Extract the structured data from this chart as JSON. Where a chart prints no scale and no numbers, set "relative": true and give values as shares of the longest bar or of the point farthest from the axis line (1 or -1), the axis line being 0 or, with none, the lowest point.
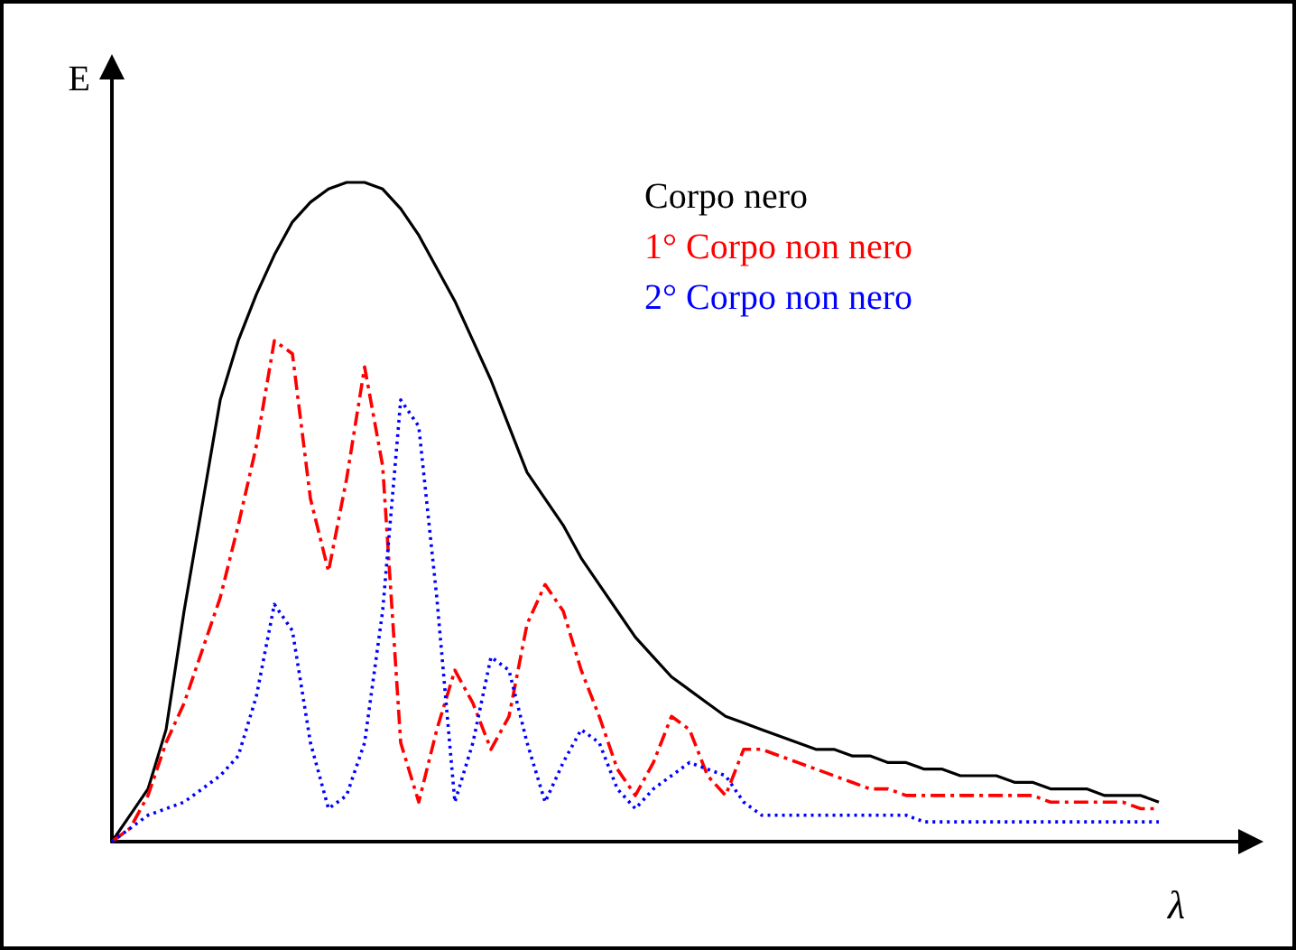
{
  "chart_data": {
    "type": "line",
    "relative": true,
    "xlabel": "λ",
    "ylabel": "E",
    "legend": "top right",
    "grid": false,
    "marker": "none",
    "categories": [
      null,
      null,
      null,
      null,
      null,
      null,
      null,
      null,
      null,
      null,
      null,
      null,
      null,
      null,
      null,
      null,
      null,
      null,
      null,
      null,
      null,
      null,
      null,
      null,
      null,
      null,
      null,
      null,
      null,
      null,
      null,
      null,
      null,
      null,
      null,
      null,
      null,
      null,
      null,
      null,
      null,
      null,
      null,
      null,
      null,
      null,
      null,
      null,
      null,
      null,
      null,
      null,
      null,
      null,
      null,
      null,
      null,
      null,
      null,
      null,
      null,
      null,
      null,
      null
    ],
    "series": [
      {
        "name": "Corpo nero",
        "color": "#000000",
        "line_style": "solid",
        "values": [
          0,
          0.04,
          0.08,
          0.17,
          0.35,
          0.51,
          0.67,
          0.76,
          0.83,
          0.89,
          0.94,
          0.97,
          0.99,
          1,
          1,
          0.99,
          0.96,
          0.92,
          0.87,
          0.82,
          0.76,
          0.7,
          0.63,
          0.56,
          0.52,
          0.48,
          0.43,
          0.39,
          0.35,
          0.31,
          0.28,
          0.25,
          0.23,
          0.21,
          0.19,
          0.18,
          0.17,
          0.16,
          0.15,
          0.14,
          0.14,
          0.13,
          0.13,
          0.12,
          0.12,
          0.11,
          0.11,
          0.1,
          0.1,
          0.1,
          0.09,
          0.09,
          0.08,
          0.08,
          0.08,
          0.07,
          0.07,
          0.07,
          0.06,
          null,
          null,
          null,
          null,
          null
        ]
      },
      {
        "name": "1° Corpo non nero",
        "color": "#ff0000",
        "line_style": "dashed",
        "values": [
          0,
          0.02,
          0.07,
          0.15,
          0.21,
          0.29,
          0.37,
          0.48,
          0.6,
          0.76,
          0.74,
          0.52,
          0.41,
          0.55,
          0.72,
          0.57,
          0.15,
          0.06,
          0.17,
          0.26,
          0.21,
          0.14,
          0.19,
          0.33,
          0.39,
          0.35,
          0.26,
          0.19,
          0.11,
          0.07,
          0.12,
          0.19,
          0.17,
          0.1,
          0.07,
          0.14,
          0.14,
          0.13,
          0.12,
          0.11,
          0.1,
          0.09,
          0.08,
          0.08,
          0.07,
          0.07,
          0.07,
          0.07,
          0.07,
          0.07,
          0.07,
          0.07,
          0.06,
          0.06,
          0.06,
          0.06,
          0.06,
          0.05,
          0.05,
          null,
          null,
          null,
          null,
          null
        ]
      },
      {
        "name": "2° Corpo non nero",
        "color": "#0000ff",
        "line_style": "dotted",
        "values": [
          0,
          0.02,
          0.04,
          0.05,
          0.06,
          0.08,
          0.1,
          0.13,
          0.22,
          0.36,
          0.32,
          0.15,
          0.05,
          0.07,
          0.15,
          0.35,
          0.67,
          0.63,
          0.37,
          0.06,
          0.15,
          0.28,
          0.26,
          0.15,
          0.06,
          0.12,
          0.17,
          0.15,
          0.08,
          0.05,
          0.08,
          0.1,
          0.12,
          0.11,
          0.1,
          0.06,
          0.04,
          0.04,
          0.04,
          0.04,
          0.04,
          0.04,
          0.04,
          0.04,
          0.04,
          0.03,
          0.03,
          0.03,
          0.03,
          0.03,
          0.03,
          0.03,
          0.03,
          0.03,
          0.03,
          0.03,
          0.03,
          0.03,
          0.03,
          null,
          null,
          null,
          null,
          null
        ]
      }
    ]
  }
}
